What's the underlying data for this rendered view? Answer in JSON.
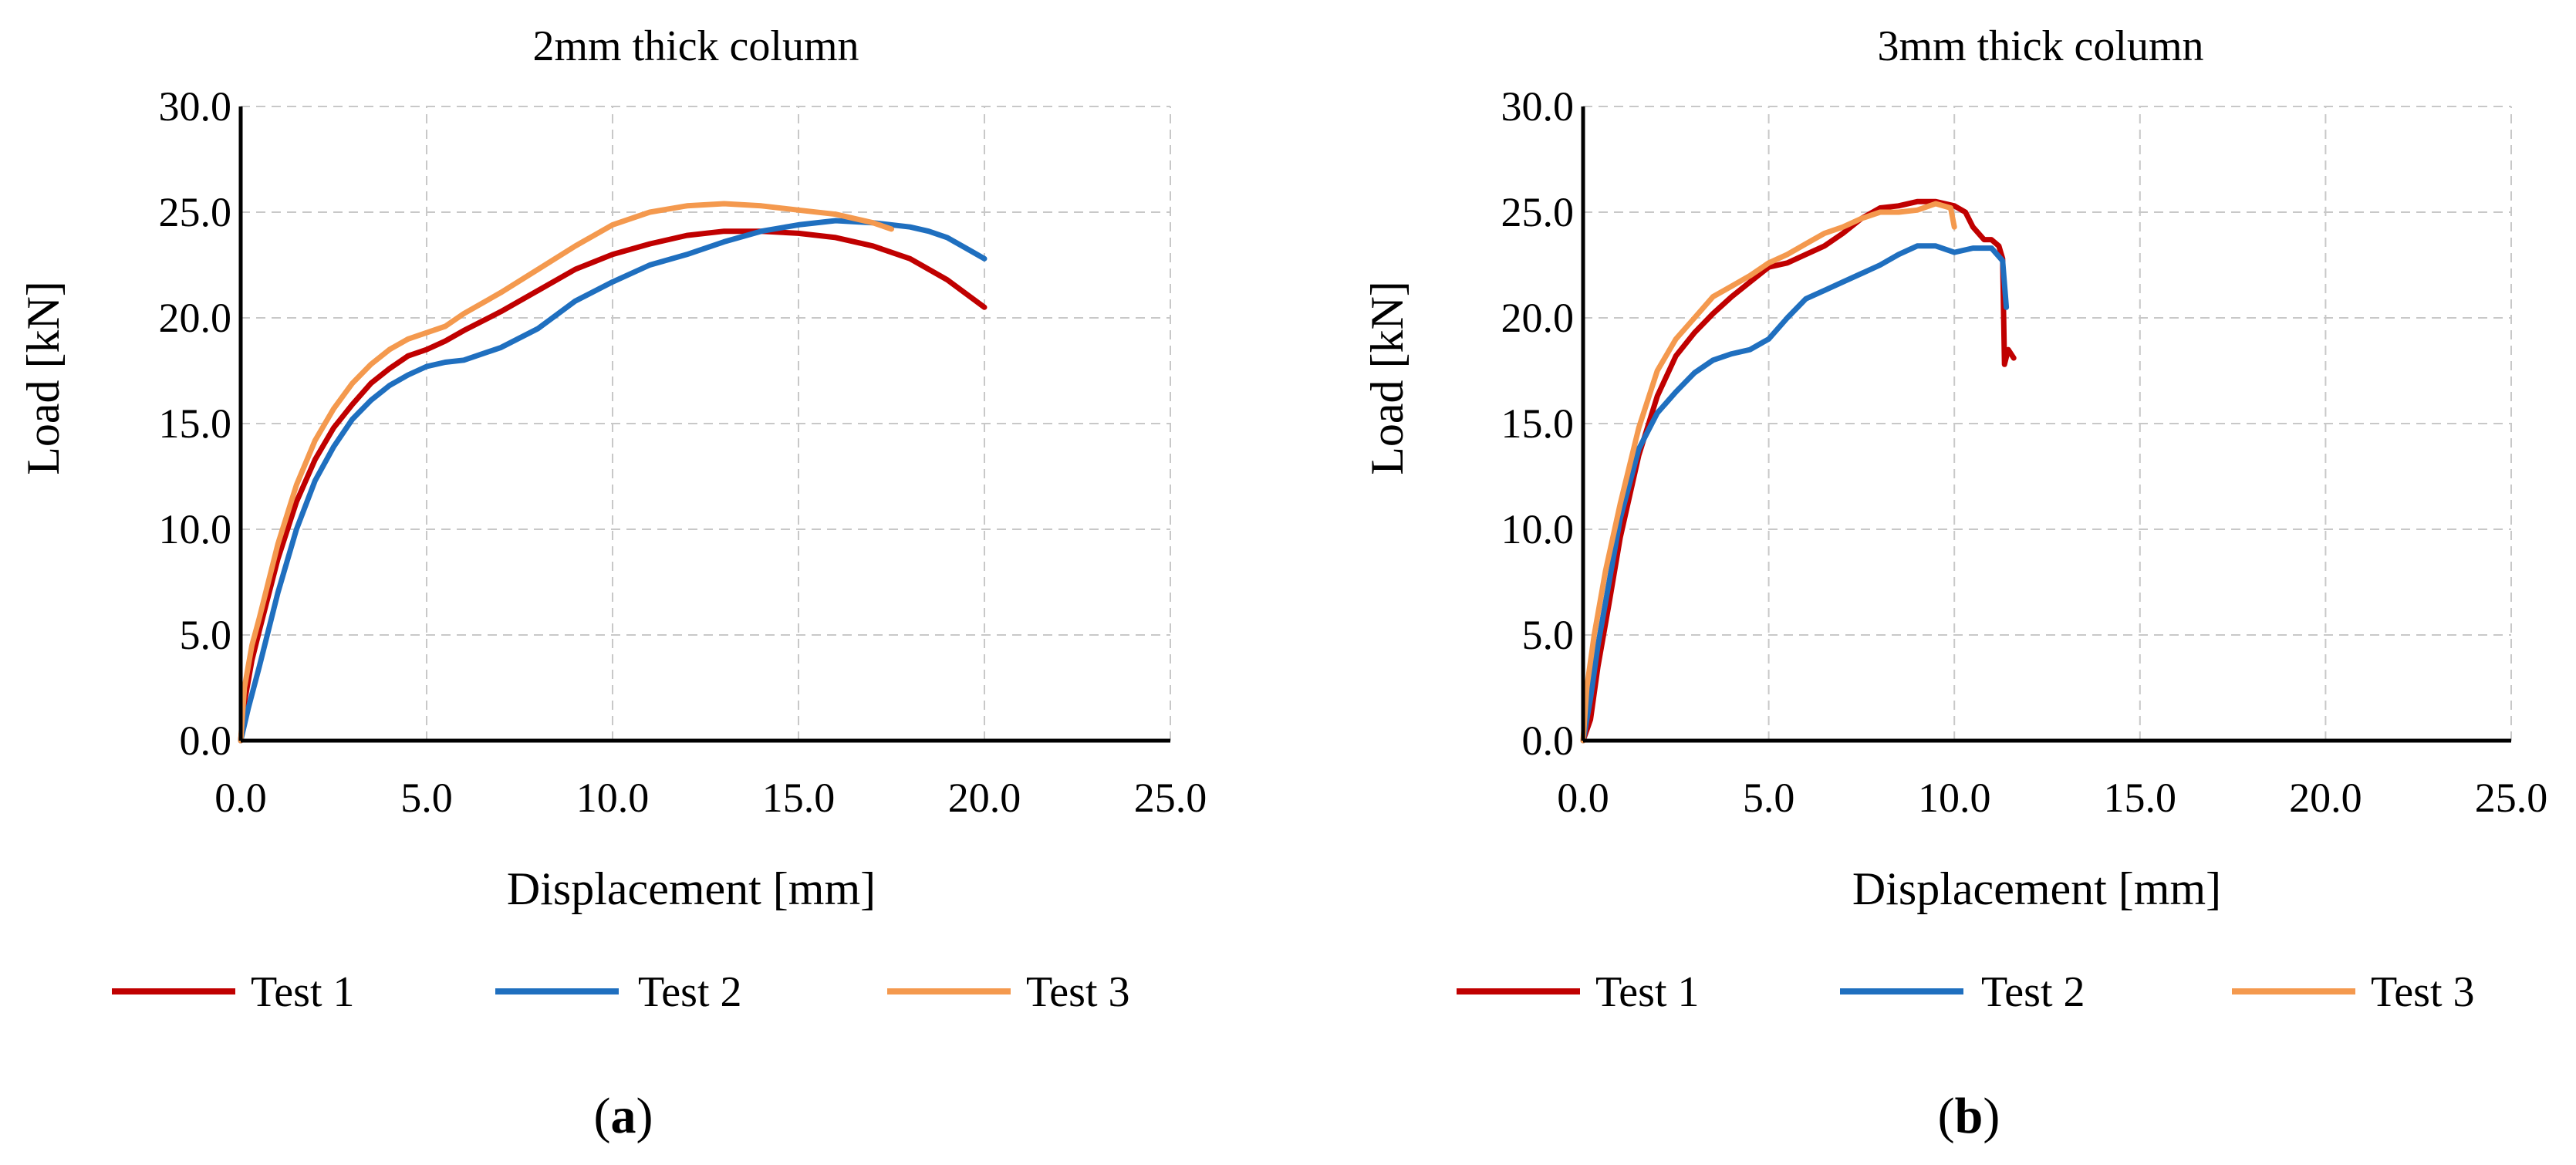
{
  "chart_data": [
    {
      "type": "line",
      "panel_label": "a",
      "title": "2mm thick column",
      "xlabel": "Displacement [mm]",
      "ylabel": "Load [kN]",
      "xlim": [
        0,
        25
      ],
      "ylim": [
        0,
        30
      ],
      "xticks": [
        "0.0",
        "5.0",
        "10.0",
        "15.0",
        "20.0",
        "25.0"
      ],
      "yticks": [
        "0.0",
        "5.0",
        "10.0",
        "15.0",
        "20.0",
        "25.0",
        "30.0"
      ],
      "grid": true,
      "legend_position": "bottom",
      "series": [
        {
          "name": "Test 1",
          "color": "#c00000",
          "points": [
            [
              0,
              0
            ],
            [
              0.1,
              1.8
            ],
            [
              0.3,
              3.8
            ],
            [
              0.5,
              5.2
            ],
            [
              1.0,
              8.6
            ],
            [
              1.5,
              11.3
            ],
            [
              2.0,
              13.3
            ],
            [
              2.5,
              14.8
            ],
            [
              3.0,
              15.9
            ],
            [
              3.5,
              16.9
            ],
            [
              4.0,
              17.6
            ],
            [
              4.5,
              18.2
            ],
            [
              5.0,
              18.5
            ],
            [
              5.5,
              18.9
            ],
            [
              6.0,
              19.4
            ],
            [
              7.0,
              20.3
            ],
            [
              8.0,
              21.3
            ],
            [
              9.0,
              22.3
            ],
            [
              10.0,
              23.0
            ],
            [
              11.0,
              23.5
            ],
            [
              12.0,
              23.9
            ],
            [
              13.0,
              24.1
            ],
            [
              14.0,
              24.1
            ],
            [
              15.0,
              24.0
            ],
            [
              16.0,
              23.8
            ],
            [
              17.0,
              23.4
            ],
            [
              18.0,
              22.8
            ],
            [
              19.0,
              21.8
            ],
            [
              20.0,
              20.5
            ]
          ]
        },
        {
          "name": "Test 2",
          "color": "#1f6fbf",
          "points": [
            [
              0,
              0
            ],
            [
              0.2,
              1.5
            ],
            [
              0.5,
              3.5
            ],
            [
              1.0,
              7.0
            ],
            [
              1.5,
              10.0
            ],
            [
              2.0,
              12.3
            ],
            [
              2.5,
              13.9
            ],
            [
              3.0,
              15.2
            ],
            [
              3.5,
              16.1
            ],
            [
              4.0,
              16.8
            ],
            [
              4.5,
              17.3
            ],
            [
              5.0,
              17.7
            ],
            [
              5.5,
              17.9
            ],
            [
              6.0,
              18.0
            ],
            [
              6.5,
              18.3
            ],
            [
              7.0,
              18.6
            ],
            [
              8.0,
              19.5
            ],
            [
              9.0,
              20.8
            ],
            [
              10.0,
              21.7
            ],
            [
              11.0,
              22.5
            ],
            [
              12.0,
              23.0
            ],
            [
              13.0,
              23.6
            ],
            [
              14.0,
              24.1
            ],
            [
              15.0,
              24.4
            ],
            [
              16.0,
              24.6
            ],
            [
              17.0,
              24.5
            ],
            [
              18.0,
              24.3
            ],
            [
              18.5,
              24.1
            ],
            [
              19.0,
              23.8
            ],
            [
              19.5,
              23.3
            ],
            [
              20.0,
              22.8
            ]
          ]
        },
        {
          "name": "Test 3",
          "color": "#f4994e",
          "points": [
            [
              0,
              0
            ],
            [
              0.1,
              2.5
            ],
            [
              0.3,
              4.5
            ],
            [
              0.5,
              5.8
            ],
            [
              1.0,
              9.3
            ],
            [
              1.5,
              12.1
            ],
            [
              2.0,
              14.2
            ],
            [
              2.5,
              15.7
            ],
            [
              3.0,
              16.9
            ],
            [
              3.5,
              17.8
            ],
            [
              4.0,
              18.5
            ],
            [
              4.5,
              19.0
            ],
            [
              5.0,
              19.3
            ],
            [
              5.5,
              19.6
            ],
            [
              6.0,
              20.2
            ],
            [
              7.0,
              21.2
            ],
            [
              8.0,
              22.3
            ],
            [
              9.0,
              23.4
            ],
            [
              10.0,
              24.4
            ],
            [
              11.0,
              25.0
            ],
            [
              12.0,
              25.3
            ],
            [
              13.0,
              25.4
            ],
            [
              14.0,
              25.3
            ],
            [
              15.0,
              25.1
            ],
            [
              16.0,
              24.9
            ],
            [
              17.0,
              24.5
            ],
            [
              17.5,
              24.2
            ]
          ]
        }
      ]
    },
    {
      "type": "line",
      "panel_label": "b",
      "title": "3mm thick column",
      "xlabel": "Displacement [mm]",
      "ylabel": "Load [kN]",
      "xlim": [
        0,
        25
      ],
      "ylim": [
        0,
        30
      ],
      "xticks": [
        "0.0",
        "5.0",
        "10.0",
        "15.0",
        "20.0",
        "25.0"
      ],
      "yticks": [
        "0.0",
        "5.0",
        "10.0",
        "15.0",
        "20.0",
        "25.0",
        "30.0"
      ],
      "grid": true,
      "legend_position": "bottom",
      "series": [
        {
          "name": "Test 1",
          "color": "#c00000",
          "points": [
            [
              0,
              0
            ],
            [
              0.2,
              1.0
            ],
            [
              0.4,
              3.5
            ],
            [
              0.7,
              6.5
            ],
            [
              1.0,
              9.6
            ],
            [
              1.5,
              13.5
            ],
            [
              2.0,
              16.3
            ],
            [
              2.5,
              18.2
            ],
            [
              3.0,
              19.3
            ],
            [
              3.5,
              20.2
            ],
            [
              4.0,
              21.0
            ],
            [
              4.5,
              21.7
            ],
            [
              5.0,
              22.4
            ],
            [
              5.5,
              22.6
            ],
            [
              6.0,
              23.0
            ],
            [
              6.5,
              23.4
            ],
            [
              7.0,
              24.0
            ],
            [
              7.5,
              24.7
            ],
            [
              8.0,
              25.2
            ],
            [
              8.5,
              25.3
            ],
            [
              9.0,
              25.5
            ],
            [
              9.5,
              25.5
            ],
            [
              10.0,
              25.3
            ],
            [
              10.3,
              25.0
            ],
            [
              10.5,
              24.3
            ],
            [
              10.8,
              23.7
            ],
            [
              11.0,
              23.7
            ],
            [
              11.2,
              23.4
            ],
            [
              11.3,
              22.8
            ],
            [
              11.35,
              17.8
            ],
            [
              11.45,
              18.5
            ],
            [
              11.6,
              18.1
            ]
          ]
        },
        {
          "name": "Test 2",
          "color": "#1f6fbf",
          "points": [
            [
              0,
              0
            ],
            [
              0.2,
              2.0
            ],
            [
              0.4,
              4.5
            ],
            [
              0.7,
              7.5
            ],
            [
              1.0,
              10.5
            ],
            [
              1.5,
              13.8
            ],
            [
              2.0,
              15.5
            ],
            [
              2.5,
              16.5
            ],
            [
              3.0,
              17.4
            ],
            [
              3.5,
              18.0
            ],
            [
              4.0,
              18.3
            ],
            [
              4.5,
              18.5
            ],
            [
              5.0,
              19.0
            ],
            [
              5.5,
              20.0
            ],
            [
              6.0,
              20.9
            ],
            [
              6.5,
              21.3
            ],
            [
              7.0,
              21.7
            ],
            [
              7.5,
              22.1
            ],
            [
              8.0,
              22.5
            ],
            [
              8.5,
              23.0
            ],
            [
              9.0,
              23.4
            ],
            [
              9.5,
              23.4
            ],
            [
              10.0,
              23.1
            ],
            [
              10.5,
              23.3
            ],
            [
              11.0,
              23.3
            ],
            [
              11.3,
              22.7
            ],
            [
              11.4,
              20.5
            ]
          ]
        },
        {
          "name": "Test 3",
          "color": "#f4994e",
          "points": [
            [
              0,
              0
            ],
            [
              0.1,
              2.5
            ],
            [
              0.3,
              5.0
            ],
            [
              0.6,
              8.0
            ],
            [
              1.0,
              11.2
            ],
            [
              1.5,
              14.8
            ],
            [
              2.0,
              17.5
            ],
            [
              2.5,
              19.0
            ],
            [
              3.0,
              20.0
            ],
            [
              3.5,
              21.0
            ],
            [
              4.0,
              21.5
            ],
            [
              4.5,
              22.0
            ],
            [
              5.0,
              22.6
            ],
            [
              5.5,
              23.0
            ],
            [
              6.0,
              23.5
            ],
            [
              6.5,
              24.0
            ],
            [
              7.0,
              24.3
            ],
            [
              7.5,
              24.7
            ],
            [
              8.0,
              25.0
            ],
            [
              8.5,
              25.0
            ],
            [
              9.0,
              25.1
            ],
            [
              9.5,
              25.4
            ],
            [
              9.9,
              25.2
            ],
            [
              10.0,
              24.3
            ]
          ]
        }
      ]
    }
  ]
}
